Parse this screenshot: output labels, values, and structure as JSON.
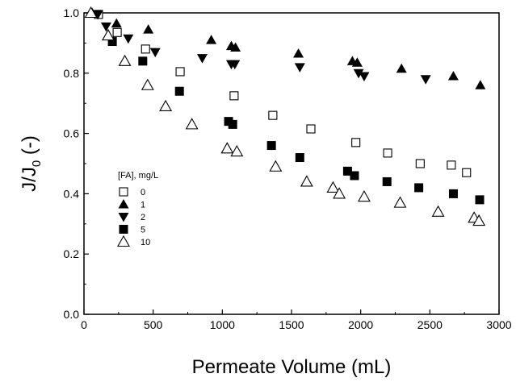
{
  "chart_data": {
    "type": "scatter",
    "title": "",
    "xlabel": "Permeate Volume (mL)",
    "ylabel_main": "J/J",
    "ylabel_sub": "0",
    "ylabel_suffix": " (-)",
    "xlim": [
      0,
      3000
    ],
    "ylim": [
      0,
      1.0
    ],
    "xticks": [
      0,
      500,
      1000,
      1500,
      2000,
      2500,
      3000
    ],
    "yticks": [
      0.0,
      0.2,
      0.4,
      0.6,
      0.8,
      1.0
    ],
    "xtick_labels": [
      "0",
      "500",
      "1000",
      "1500",
      "2000",
      "2500",
      "3000"
    ],
    "ytick_labels": [
      "0.0",
      "0.2",
      "0.4",
      "0.6",
      "0.8",
      "1.0"
    ],
    "grid": false,
    "legend": {
      "title": "[FA], mg/L",
      "placement": "lower-left",
      "entries": [
        "0",
        "1",
        "2",
        "5",
        "10"
      ]
    },
    "series": [
      {
        "name": "0",
        "marker": "square-open",
        "points": [
          [
            105,
            0.995
          ],
          [
            240,
            0.935
          ],
          [
            445,
            0.88
          ],
          [
            695,
            0.805
          ],
          [
            1085,
            0.725
          ],
          [
            1365,
            0.66
          ],
          [
            1640,
            0.615
          ],
          [
            1965,
            0.57
          ],
          [
            2195,
            0.535
          ],
          [
            2430,
            0.5
          ],
          [
            2655,
            0.495
          ],
          [
            2765,
            0.47
          ]
        ]
      },
      {
        "name": "1",
        "marker": "triangle-up-filled",
        "points": [
          [
            60,
            1.0
          ],
          [
            235,
            0.965
          ],
          [
            465,
            0.945
          ],
          [
            920,
            0.91
          ],
          [
            1065,
            0.89
          ],
          [
            1095,
            0.885
          ],
          [
            1550,
            0.865
          ],
          [
            1940,
            0.84
          ],
          [
            1975,
            0.835
          ],
          [
            2295,
            0.815
          ],
          [
            2670,
            0.79
          ],
          [
            2865,
            0.76
          ]
        ]
      },
      {
        "name": "2",
        "marker": "triangle-down-filled",
        "points": [
          [
            100,
            0.995
          ],
          [
            160,
            0.955
          ],
          [
            320,
            0.915
          ],
          [
            515,
            0.87
          ],
          [
            855,
            0.85
          ],
          [
            1065,
            0.83
          ],
          [
            1090,
            0.83
          ],
          [
            1560,
            0.82
          ],
          [
            1985,
            0.8
          ],
          [
            2025,
            0.79
          ],
          [
            2470,
            0.78
          ]
        ]
      },
      {
        "name": "5",
        "marker": "square-filled",
        "points": [
          [
            205,
            0.905
          ],
          [
            425,
            0.84
          ],
          [
            690,
            0.74
          ],
          [
            1045,
            0.64
          ],
          [
            1075,
            0.63
          ],
          [
            1355,
            0.56
          ],
          [
            1560,
            0.52
          ],
          [
            1905,
            0.475
          ],
          [
            1955,
            0.46
          ],
          [
            2190,
            0.44
          ],
          [
            2420,
            0.42
          ],
          [
            2670,
            0.4
          ],
          [
            2860,
            0.38
          ]
        ]
      },
      {
        "name": "10",
        "marker": "triangle-up-open",
        "points": [
          [
            50,
            1.0
          ],
          [
            175,
            0.925
          ],
          [
            295,
            0.84
          ],
          [
            460,
            0.76
          ],
          [
            590,
            0.69
          ],
          [
            780,
            0.63
          ],
          [
            1035,
            0.55
          ],
          [
            1105,
            0.54
          ],
          [
            1385,
            0.49
          ],
          [
            1610,
            0.44
          ],
          [
            1800,
            0.42
          ],
          [
            1845,
            0.4
          ],
          [
            2025,
            0.39
          ],
          [
            2285,
            0.37
          ],
          [
            2560,
            0.34
          ],
          [
            2820,
            0.32
          ],
          [
            2855,
            0.31
          ]
        ]
      }
    ]
  }
}
